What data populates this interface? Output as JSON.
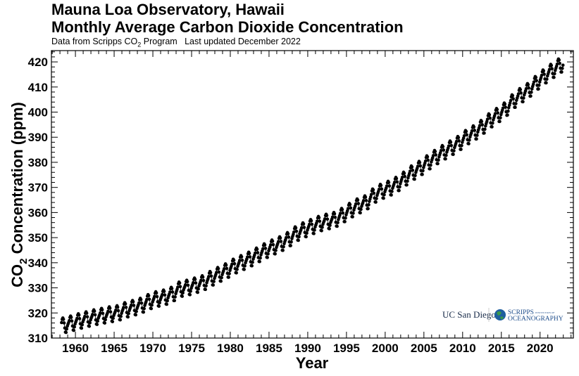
{
  "chart_data": {
    "type": "scatter",
    "title": "Mauna Loa Observatory, Hawaii",
    "subtitle": "Monthly Average Carbon Dioxide Concentration",
    "source_note": "Data from Scripps CO",
    "source_note_sub": "2",
    "source_note_rest": " Program   Last updated December 2022",
    "xlabel": "Year",
    "ylabel_prefix": "CO",
    "ylabel_sub": "2",
    "ylabel_rest": " Concentration (ppm)",
    "xlim": [
      1956.9,
      2024.3
    ],
    "ylim": [
      310,
      424.5
    ],
    "xticks": [
      "1960",
      "1965",
      "1970",
      "1975",
      "1980",
      "1985",
      "1990",
      "1995",
      "2000",
      "2005",
      "2010",
      "2015",
      "2020"
    ],
    "yticks": [
      "310",
      "320",
      "330",
      "340",
      "350",
      "360",
      "370",
      "380",
      "390",
      "400",
      "410",
      "420"
    ],
    "series_description": "monthly values = annual mean + seasonal offset",
    "start": {
      "year": 1958,
      "month": 3
    },
    "end": {
      "year": 2022,
      "month": 12
    },
    "annual_mean_years": [
      1958,
      1959,
      1960,
      1961,
      1962,
      1963,
      1964,
      1965,
      1966,
      1967,
      1968,
      1969,
      1970,
      1971,
      1972,
      1973,
      1974,
      1975,
      1976,
      1977,
      1978,
      1979,
      1980,
      1981,
      1982,
      1983,
      1984,
      1985,
      1986,
      1987,
      1988,
      1989,
      1990,
      1991,
      1992,
      1993,
      1994,
      1995,
      1996,
      1997,
      1998,
      1999,
      2000,
      2001,
      2002,
      2003,
      2004,
      2005,
      2006,
      2007,
      2008,
      2009,
      2010,
      2011,
      2012,
      2013,
      2014,
      2015,
      2016,
      2017,
      2018,
      2019,
      2020,
      2021,
      2022
    ],
    "annual_mean_ppm": [
      315.2,
      315.98,
      316.91,
      317.64,
      318.45,
      318.99,
      319.62,
      320.04,
      321.37,
      322.18,
      323.05,
      324.62,
      325.68,
      326.32,
      327.46,
      329.68,
      330.19,
      331.13,
      332.03,
      333.84,
      335.41,
      336.84,
      338.76,
      340.12,
      341.48,
      343.15,
      344.87,
      346.35,
      347.61,
      349.31,
      351.69,
      353.2,
      354.45,
      355.7,
      356.54,
      357.21,
      358.96,
      360.97,
      362.74,
      363.88,
      366.84,
      368.54,
      369.71,
      371.32,
      373.45,
      375.98,
      377.7,
      379.98,
      382.09,
      384.02,
      385.83,
      387.64,
      390.1,
      391.85,
      394.06,
      396.74,
      398.81,
      401.01,
      404.41,
      406.76,
      408.72,
      411.65,
      414.21,
      416.41,
      418.53
    ],
    "seasonal_offset_ppm": [
      -0.1,
      0.5,
      1.2,
      2.4,
      2.9,
      2.3,
      0.8,
      -1.3,
      -3.0,
      -3.2,
      -1.9,
      -0.8
    ],
    "marker_color": "#000000"
  },
  "logos": {
    "ucsd": "UC San Diego",
    "scripps": "SCRIPPS",
    "scripps_small": "INSTITUTION OF",
    "scripps_line2": "OCEANOGRAPHY"
  }
}
